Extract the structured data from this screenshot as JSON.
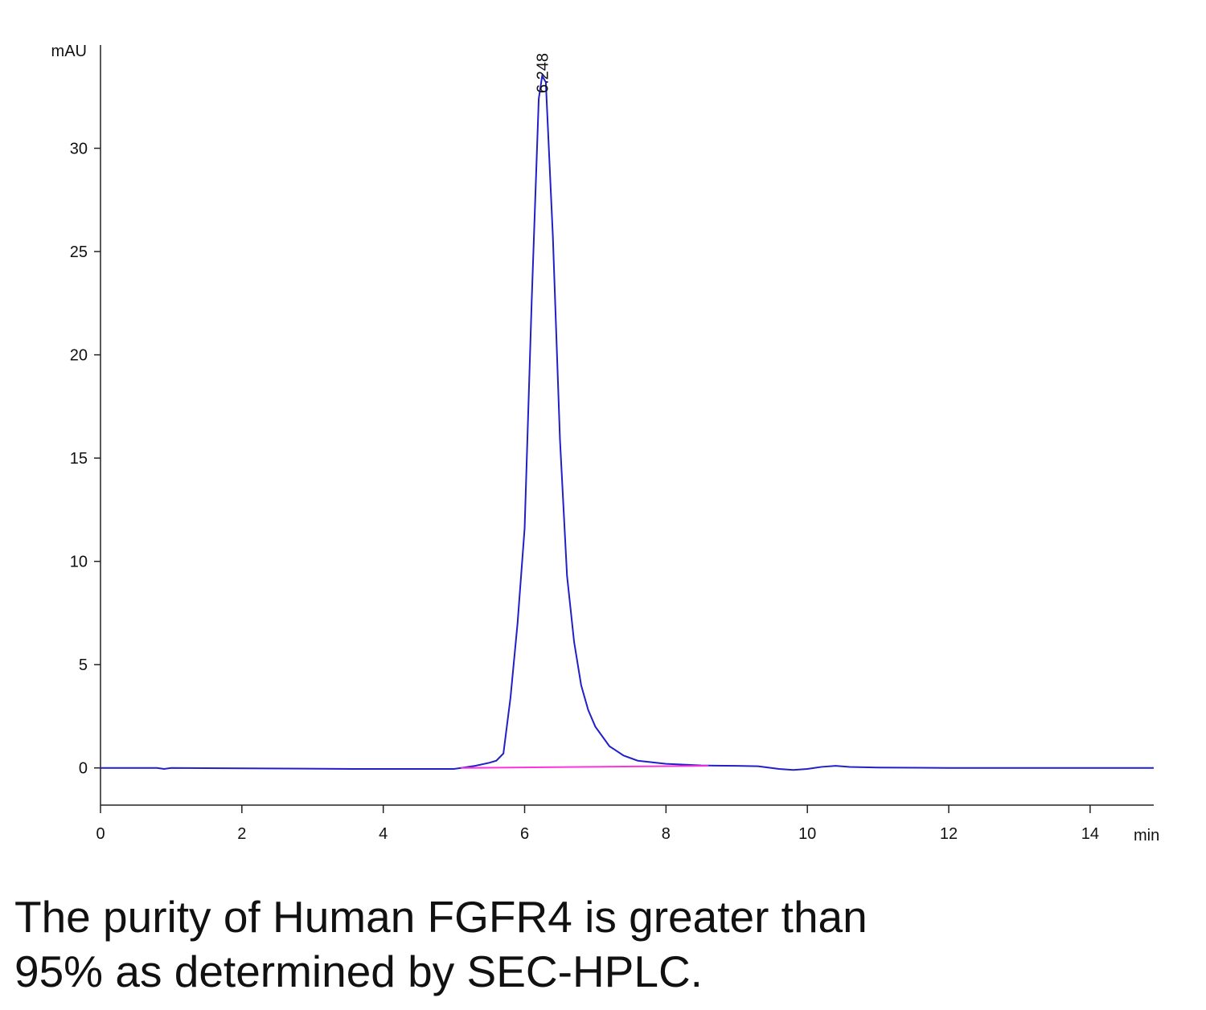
{
  "chart_data": {
    "type": "line",
    "ylabel": "mAU",
    "xlabel": "min",
    "xlim": [
      0,
      14.9
    ],
    "xticks": [
      0,
      2,
      4,
      6,
      8,
      10,
      12,
      14
    ],
    "ylim": [
      -1.8,
      35
    ],
    "yticks": [
      0,
      5,
      10,
      15,
      20,
      25,
      30
    ],
    "grid": false,
    "series": [
      {
        "color": "#2020c8",
        "x": [
          0,
          0.8,
          0.9,
          1.0,
          3.6,
          5.0,
          5.1,
          5.3,
          5.5,
          5.6,
          5.7,
          5.8,
          5.9,
          6.0,
          6.1,
          6.2,
          6.248,
          6.3,
          6.4,
          6.5,
          6.6,
          6.7,
          6.8,
          6.9,
          7.0,
          7.2,
          7.4,
          7.6,
          8.0,
          8.5,
          9.0,
          9.3,
          9.6,
          9.8,
          10.0,
          10.2,
          10.4,
          10.6,
          11,
          12,
          13,
          14,
          14.9
        ],
        "values": [
          0,
          0,
          -0.05,
          0,
          -0.05,
          -0.05,
          0,
          0.1,
          0.25,
          0.35,
          0.7,
          3.4,
          7.0,
          11.6,
          22.6,
          32.4,
          33.5,
          33.2,
          25.7,
          15.9,
          9.3,
          6.1,
          4.0,
          2.8,
          2.0,
          1.05,
          0.6,
          0.35,
          0.2,
          0.12,
          0.1,
          0.08,
          -0.05,
          -0.1,
          -0.05,
          0.05,
          0.1,
          0.05,
          0.02,
          0,
          0,
          0,
          0
        ]
      },
      {
        "color": "#ff33dd",
        "x": [
          5.1,
          8.6
        ],
        "values": [
          0,
          0.1
        ]
      }
    ],
    "annotations": [
      {
        "text": "6.248",
        "x": 6.248
      }
    ]
  },
  "caption": [
    "The purity of Human FGFR4 is greater than",
    "95% as determined by SEC-HPLC."
  ]
}
